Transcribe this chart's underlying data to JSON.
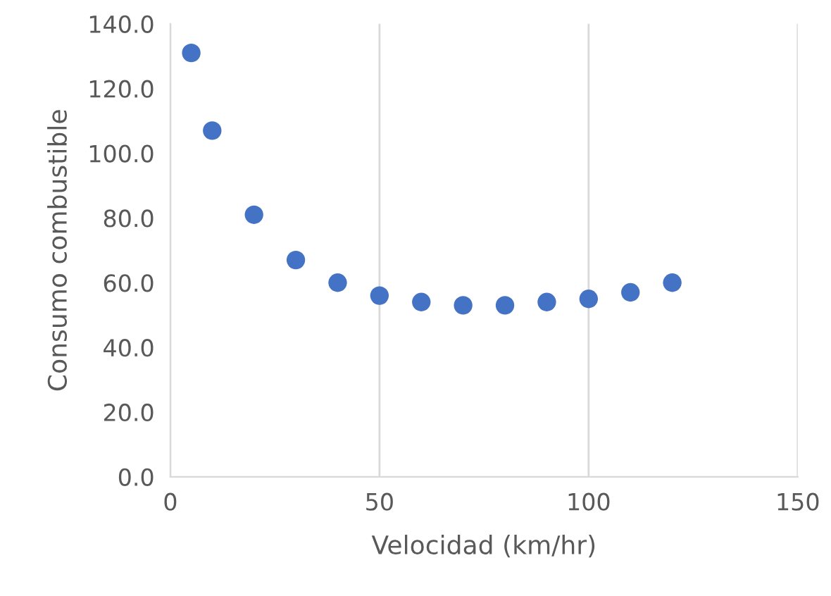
{
  "chart_data": {
    "type": "scatter",
    "xlabel": "Velocidad (km/hr)",
    "ylabel": "Consumo combustible",
    "x": [
      5,
      10,
      20,
      30,
      40,
      50,
      60,
      70,
      80,
      90,
      100,
      110,
      120
    ],
    "series": [
      {
        "color": "#4472c4",
        "values": [
          131,
          107,
          81,
          67,
          60,
          56,
          54,
          53,
          53,
          54,
          55,
          57,
          60
        ]
      }
    ],
    "xlim": [
      0,
      150
    ],
    "xticks": [
      0,
      50,
      100,
      150
    ],
    "ylim": [
      0,
      140
    ],
    "yticks": [
      {
        "value": 0,
        "label": "0.0"
      },
      {
        "value": 20,
        "label": "20.0"
      },
      {
        "value": 40,
        "label": "40.0"
      },
      {
        "value": 60,
        "label": "60.0"
      },
      {
        "value": 80,
        "label": "80.0"
      },
      {
        "value": 100,
        "label": "100.0"
      },
      {
        "value": 120,
        "label": "120.0"
      },
      {
        "value": 140,
        "label": "140.0"
      }
    ],
    "grid": "x",
    "marker": "circle"
  }
}
